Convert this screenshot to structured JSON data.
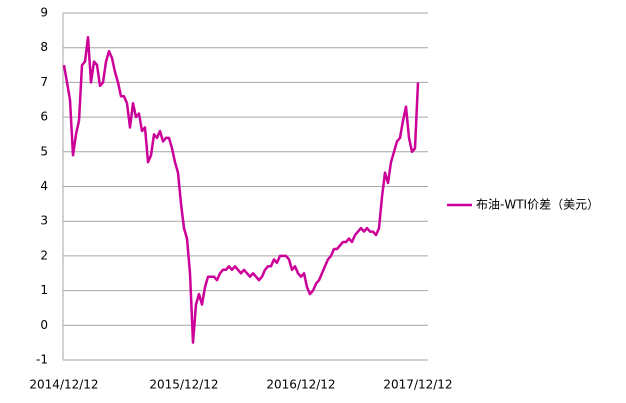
{
  "chart_data": {
    "type": "line",
    "categories": [
      "2014/12/12",
      null,
      null,
      null,
      null,
      null,
      null,
      null,
      null,
      null,
      null,
      null,
      null,
      null,
      null,
      null,
      null,
      null,
      null,
      null,
      null,
      null,
      null,
      null,
      null,
      null,
      null,
      null,
      null,
      null,
      null,
      null,
      null,
      null,
      null,
      null,
      null,
      null,
      null,
      null,
      "2015/12/12",
      null,
      null,
      null,
      null,
      null,
      null,
      null,
      null,
      null,
      null,
      null,
      null,
      null,
      null,
      null,
      null,
      null,
      null,
      null,
      null,
      null,
      null,
      null,
      null,
      null,
      null,
      null,
      null,
      null,
      null,
      null,
      null,
      null,
      null,
      null,
      null,
      null,
      null,
      "2016/12/12",
      null,
      null,
      null,
      null,
      null,
      null,
      null,
      null,
      null,
      null,
      null,
      null,
      null,
      null,
      null,
      null,
      null,
      null,
      null,
      null,
      null,
      null,
      null,
      null,
      null,
      null,
      null,
      null,
      null,
      null,
      null,
      null,
      null,
      null,
      null,
      null,
      null,
      null,
      "2017/12/12"
    ],
    "series": [
      {
        "name": "布油-WTI价差（美元）",
        "color": "#cc0099",
        "values": [
          7.5,
          7.0,
          6.5,
          4.9,
          5.5,
          5.9,
          7.5,
          7.6,
          8.3,
          7.0,
          7.6,
          7.5,
          6.9,
          7.0,
          7.6,
          7.9,
          7.7,
          7.3,
          7.0,
          6.6,
          6.6,
          6.4,
          5.7,
          6.4,
          6.0,
          6.1,
          5.6,
          5.7,
          4.7,
          4.9,
          5.5,
          5.4,
          5.6,
          5.3,
          5.4,
          5.4,
          5.1,
          4.7,
          4.4,
          3.5,
          2.8,
          2.5,
          1.5,
          -0.5,
          0.6,
          0.9,
          0.6,
          1.1,
          1.4,
          1.4,
          1.4,
          1.3,
          1.5,
          1.6,
          1.6,
          1.7,
          1.6,
          1.7,
          1.6,
          1.5,
          1.6,
          1.5,
          1.4,
          1.5,
          1.4,
          1.3,
          1.4,
          1.6,
          1.7,
          1.7,
          1.9,
          1.8,
          2.0,
          2.0,
          2.0,
          1.9,
          1.6,
          1.7,
          1.5,
          1.4,
          1.5,
          1.1,
          0.9,
          1.0,
          1.2,
          1.3,
          1.5,
          1.7,
          1.9,
          2.0,
          2.2,
          2.2,
          2.3,
          2.4,
          2.4,
          2.5,
          2.4,
          2.6,
          2.7,
          2.8,
          2.7,
          2.8,
          2.7,
          2.7,
          2.6,
          2.8,
          3.7,
          4.4,
          4.1,
          4.7,
          5.0,
          5.3,
          5.4,
          5.9,
          6.3,
          5.4,
          5.0,
          5.1,
          7.0
        ]
      }
    ],
    "ylim": [
      -1,
      9
    ],
    "yticks": [
      -1,
      0,
      1,
      2,
      3,
      4,
      5,
      6,
      7,
      8,
      9
    ],
    "grid": true,
    "legend": "right"
  }
}
